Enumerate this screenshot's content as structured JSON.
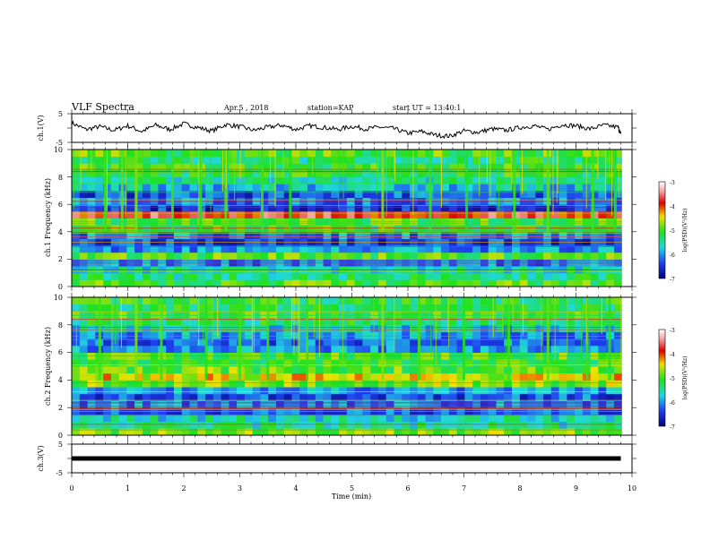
{
  "header": {
    "title": "VLF Spectra",
    "date": "Apr.5 , 2018",
    "station": "station=KAP",
    "start": "start UT = 13:40:1"
  },
  "colorbar_label": "log(PSD)(V²/Hz)",
  "colors": {
    "background": "#ffffff",
    "spec_low": "#0a0f8c",
    "spec_mid": "#15d9d0",
    "spec_high": "#f02020"
  },
  "chart_data": [
    {
      "type": "line",
      "name": "ch1-voltage",
      "ylabel": "ch.1(V)",
      "ylim": [
        -5,
        5
      ],
      "yticks": [
        "5",
        "-5"
      ],
      "xlim": [
        0,
        10
      ],
      "x": [
        0,
        0.25,
        0.5,
        0.75,
        1,
        1.25,
        1.5,
        1.75,
        2,
        2.25,
        2.5,
        2.75,
        3,
        3.25,
        3.5,
        3.75,
        4,
        4.25,
        4.5,
        4.75,
        5,
        5.25,
        5.5,
        5.75,
        6,
        6.25,
        6.5,
        6.75,
        7,
        7.25,
        7.5,
        7.75,
        8,
        8.25,
        8.5,
        8.75,
        9,
        9.25,
        9.5,
        9.75,
        9.8
      ],
      "values": [
        1.8,
        -0.5,
        0.5,
        -0.8,
        0.8,
        -1.2,
        1.0,
        -0.5,
        1.5,
        0.2,
        -1.0,
        1.2,
        0.5,
        -0.8,
        0.3,
        1.0,
        -0.5,
        0.8,
        0.2,
        -0.5,
        0.6,
        -0.3,
        0.3,
        -0.2,
        -1.8,
        -1.2,
        -2.5,
        -2.8,
        -1.0,
        -1.5,
        -0.3,
        -0.8,
        0.2,
        0.8,
        -0.5,
        1.2,
        0.8,
        -0.3,
        1.0,
        0.3,
        -2.0
      ]
    },
    {
      "type": "heatmap",
      "name": "ch1-spectrogram",
      "ylabel": "ch.1 Frequency (kHz)",
      "ylim": [
        0,
        10
      ],
      "yticks": [
        "0",
        "2",
        "4",
        "6",
        "8",
        "10"
      ],
      "xlim": [
        0,
        10
      ],
      "zlim": [
        -7,
        -3
      ],
      "colorbar_ticks": [
        "-3",
        "-4",
        "-5",
        "-6",
        "-7"
      ],
      "freq_kHz": [
        0.25,
        0.75,
        1.25,
        1.75,
        2.25,
        2.75,
        3.25,
        3.75,
        4.25,
        4.75,
        5.25,
        5.75,
        6.25,
        6.75,
        7.25,
        7.75,
        8.25,
        8.75,
        9.25,
        9.75
      ],
      "band_log_psd": [
        -5.0,
        -5.4,
        -5.6,
        -6.1,
        -5.0,
        -6.0,
        -6.4,
        -6.1,
        -5.1,
        -5.0,
        -3.8,
        -6.5,
        -6.1,
        -6.3,
        -5.8,
        -5.5,
        -5.2,
        -5.1,
        -5.3,
        -5.0
      ],
      "bursts": [
        {
          "t": 0.6,
          "level": -5.0
        },
        {
          "t": 0.9,
          "level": -4.9
        },
        {
          "t": 1.15,
          "level": -4.8
        },
        {
          "t": 1.8,
          "level": -5.0
        },
        {
          "t": 2.3,
          "level": -5.1
        },
        {
          "t": 2.75,
          "level": -4.9
        },
        {
          "t": 3.4,
          "level": -5.0
        },
        {
          "t": 3.9,
          "level": -5.1
        },
        {
          "t": 5.55,
          "level": -4.8
        },
        {
          "t": 6.4,
          "level": -5.0
        },
        {
          "t": 7.05,
          "level": -5.1
        },
        {
          "t": 7.9,
          "level": -5.0
        },
        {
          "t": 8.5,
          "level": -4.9
        },
        {
          "t": 9.3,
          "level": -5.0
        },
        {
          "t": 9.7,
          "level": -5.1
        }
      ]
    },
    {
      "type": "heatmap",
      "name": "ch2-spectrogram",
      "ylabel": "ch.2 Frequency (kHz)",
      "ylim": [
        0,
        10
      ],
      "yticks": [
        "0",
        "2",
        "4",
        "6",
        "8",
        "10"
      ],
      "xlim": [
        0,
        10
      ],
      "zlim": [
        -7,
        -3
      ],
      "colorbar_ticks": [
        "-3",
        "-4",
        "-5",
        "-6",
        "-7"
      ],
      "freq_kHz": [
        0.25,
        0.75,
        1.25,
        1.75,
        2.25,
        2.75,
        3.25,
        3.75,
        4.25,
        4.75,
        5.25,
        5.75,
        6.25,
        6.75,
        7.25,
        7.75,
        8.25,
        8.75,
        9.25,
        9.75
      ],
      "band_log_psd": [
        -4.8,
        -5.5,
        -5.6,
        -6.3,
        -6.1,
        -6.3,
        -6.0,
        -4.8,
        -4.5,
        -4.9,
        -5.1,
        -5.0,
        -6.0,
        -6.2,
        -6.0,
        -5.7,
        -5.3,
        -5.1,
        -5.3,
        -5.2
      ],
      "bursts": [
        {
          "t": 0.5,
          "level": -5.0
        },
        {
          "t": 1.15,
          "level": -4.8
        },
        {
          "t": 1.6,
          "level": -5.0
        },
        {
          "t": 2.4,
          "level": -5.1
        },
        {
          "t": 3.0,
          "level": -5.0
        },
        {
          "t": 3.5,
          "level": -5.1
        },
        {
          "t": 4.2,
          "level": -5.0
        },
        {
          "t": 5.55,
          "level": -4.8
        },
        {
          "t": 6.2,
          "level": -5.0
        },
        {
          "t": 7.0,
          "level": -5.1
        },
        {
          "t": 7.8,
          "level": -5.0
        },
        {
          "t": 8.5,
          "level": -4.9
        },
        {
          "t": 9.2,
          "level": -5.0
        },
        {
          "t": 9.6,
          "level": -5.1
        }
      ]
    },
    {
      "type": "line",
      "name": "ch3-voltage",
      "ylabel": "ch.3(V)",
      "ylim": [
        -5,
        5
      ],
      "yticks": [
        "5",
        "-5"
      ],
      "xlim": [
        0,
        10
      ],
      "xticks": [
        "0",
        "1",
        "2",
        "3",
        "4",
        "5",
        "6",
        "7",
        "8",
        "9",
        "10"
      ],
      "xlabel": "Time (min)",
      "x": [
        0,
        9.8
      ],
      "values": [
        0,
        0
      ]
    }
  ]
}
